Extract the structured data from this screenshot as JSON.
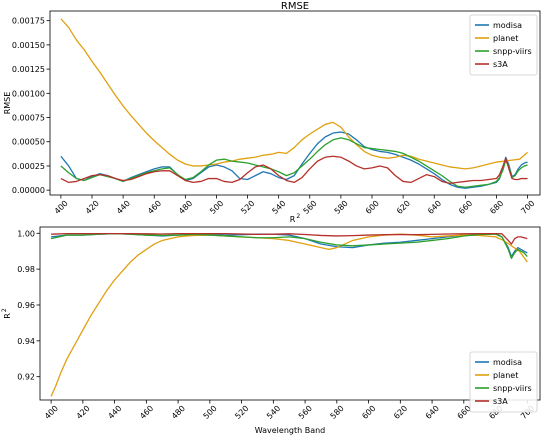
{
  "chart_data": [
    {
      "type": "line",
      "title": "RMSE",
      "xlabel": "R",
      "xlabel_superscript": "2",
      "ylabel": "RMSE",
      "xlim": [
        393,
        708
      ],
      "ylim": [
        -5e-05,
        0.00185
      ],
      "x_ticks": [
        "400",
        "420",
        "440",
        "460",
        "480",
        "500",
        "520",
        "540",
        "560",
        "580",
        "600",
        "620",
        "640",
        "660",
        "680",
        "700"
      ],
      "y_ticks": [
        "0.00000",
        "0.00025",
        "0.00050",
        "0.00075",
        "0.00100",
        "0.00125",
        "0.00150",
        "0.00175"
      ],
      "legend": "top-right",
      "grid": false,
      "series": [
        {
          "name": "modisa",
          "color": "#1f77b4",
          "x": [
            400,
            405,
            410,
            415,
            420,
            425,
            430,
            435,
            440,
            445,
            450,
            455,
            460,
            465,
            470,
            475,
            480,
            485,
            490,
            495,
            500,
            505,
            510,
            515,
            520,
            525,
            530,
            535,
            540,
            545,
            550,
            555,
            560,
            565,
            570,
            575,
            580,
            585,
            590,
            595,
            600,
            605,
            610,
            615,
            620,
            625,
            630,
            635,
            640,
            645,
            650,
            655,
            660,
            665,
            670,
            675,
            680,
            682,
            684,
            686,
            688,
            690,
            692,
            694,
            696,
            698,
            700
          ],
          "y": [
            0.00035,
            0.00025,
            0.00012,
            0.0001,
            0.00014,
            0.00017,
            0.00015,
            0.00012,
            9e-05,
            0.00013,
            0.00016,
            0.00019,
            0.00022,
            0.00024,
            0.00024,
            0.00016,
            0.0001,
            0.00012,
            0.00018,
            0.00024,
            0.00026,
            0.00024,
            0.0002,
            0.00012,
            0.00011,
            0.00015,
            0.00019,
            0.00017,
            0.00013,
            0.00011,
            0.00015,
            0.00027,
            0.00038,
            0.00048,
            0.00055,
            0.00059,
            0.0006,
            0.00058,
            0.00052,
            0.00045,
            0.00042,
            0.0004,
            0.00039,
            0.00037,
            0.00034,
            0.00031,
            0.00027,
            0.00022,
            0.00017,
            0.00011,
            6e-05,
            3e-05,
            2e-05,
            3e-05,
            4e-05,
            6e-05,
            8e-05,
            0.00012,
            0.00022,
            0.00034,
            0.00026,
            0.00014,
            0.00016,
            0.00022,
            0.00026,
            0.00028,
            0.00029
          ]
        },
        {
          "name": "planet",
          "color": "#e0a010",
          "x": [
            400,
            405,
            410,
            415,
            420,
            425,
            430,
            435,
            440,
            445,
            450,
            455,
            460,
            465,
            470,
            475,
            480,
            485,
            490,
            495,
            500,
            505,
            510,
            515,
            520,
            525,
            530,
            535,
            540,
            545,
            550,
            555,
            560,
            565,
            570,
            575,
            580,
            585,
            590,
            595,
            600,
            605,
            610,
            615,
            620,
            625,
            630,
            635,
            640,
            645,
            650,
            655,
            660,
            665,
            670,
            675,
            680,
            685,
            690,
            695,
            700
          ],
          "y": [
            0.00177,
            0.00168,
            0.00155,
            0.00145,
            0.00133,
            0.00122,
            0.0011,
            0.00098,
            0.00087,
            0.00077,
            0.00068,
            0.00059,
            0.00051,
            0.00044,
            0.00037,
            0.00031,
            0.00027,
            0.00025,
            0.00025,
            0.00026,
            0.00027,
            0.00029,
            0.0003,
            0.00032,
            0.00033,
            0.00034,
            0.00036,
            0.00037,
            0.00039,
            0.00038,
            0.00044,
            0.00052,
            0.00058,
            0.00063,
            0.00068,
            0.0007,
            0.00065,
            0.00055,
            0.00047,
            0.0004,
            0.00036,
            0.00034,
            0.00033,
            0.00034,
            0.00036,
            0.00035,
            0.00032,
            0.0003,
            0.00028,
            0.00026,
            0.00024,
            0.00023,
            0.00022,
            0.00023,
            0.00025,
            0.00027,
            0.00029,
            0.0003,
            0.00031,
            0.00032,
            0.00039
          ]
        },
        {
          "name": "snpp-viirs",
          "color": "#2ca02c",
          "x": [
            400,
            405,
            410,
            415,
            420,
            425,
            430,
            435,
            440,
            445,
            450,
            455,
            460,
            465,
            470,
            475,
            480,
            485,
            490,
            495,
            500,
            505,
            510,
            515,
            520,
            525,
            530,
            535,
            540,
            545,
            550,
            555,
            560,
            565,
            570,
            575,
            580,
            585,
            590,
            595,
            600,
            605,
            610,
            615,
            620,
            625,
            630,
            635,
            640,
            645,
            650,
            655,
            660,
            665,
            670,
            675,
            680,
            682,
            684,
            686,
            688,
            690,
            692,
            694,
            696,
            698,
            700
          ],
          "y": [
            0.00025,
            0.00018,
            0.00012,
            0.0001,
            0.00013,
            0.00016,
            0.00014,
            0.00012,
            9e-05,
            0.00012,
            0.00015,
            0.00018,
            0.0002,
            0.00022,
            0.00023,
            0.00016,
            0.00011,
            0.00013,
            0.00019,
            0.00026,
            0.00031,
            0.00032,
            0.0003,
            0.00029,
            0.00028,
            0.00026,
            0.00024,
            0.00022,
            0.00019,
            0.00015,
            0.00018,
            0.00025,
            0.00032,
            0.0004,
            0.00047,
            0.00052,
            0.00054,
            0.00052,
            0.00048,
            0.00044,
            0.00043,
            0.00042,
            0.00041,
            0.0004,
            0.00038,
            0.00034,
            0.0003,
            0.00025,
            0.0002,
            0.00015,
            9e-05,
            4e-05,
            3e-05,
            4e-05,
            5e-05,
            6e-05,
            9e-05,
            0.00013,
            0.0002,
            0.00031,
            0.00024,
            0.00013,
            0.00015,
            0.0002,
            0.00023,
            0.00025,
            0.00026
          ]
        },
        {
          "name": "s3A",
          "color": "#b5302a",
          "x": [
            400,
            405,
            410,
            415,
            420,
            425,
            430,
            435,
            440,
            445,
            450,
            455,
            460,
            465,
            470,
            475,
            480,
            485,
            490,
            495,
            500,
            505,
            510,
            515,
            520,
            525,
            530,
            535,
            540,
            545,
            550,
            555,
            560,
            565,
            570,
            575,
            580,
            585,
            590,
            595,
            600,
            605,
            610,
            615,
            620,
            625,
            630,
            635,
            640,
            645,
            650,
            655,
            660,
            665,
            670,
            675,
            680,
            682,
            684,
            686,
            688,
            690,
            692,
            694,
            696,
            698,
            700
          ],
          "y": [
            0.00012,
            8e-05,
            9e-05,
            0.00012,
            0.00015,
            0.00016,
            0.00015,
            0.00012,
            0.0001,
            0.00011,
            0.00014,
            0.00017,
            0.00019,
            0.0002,
            0.0002,
            0.00015,
            0.0001,
            8e-05,
            9e-05,
            0.00012,
            0.00012,
            9e-05,
            8e-05,
            0.00011,
            0.00018,
            0.00024,
            0.00026,
            0.00022,
            0.00015,
            0.0001,
            8e-05,
            0.00013,
            0.00022,
            0.0003,
            0.00034,
            0.00035,
            0.00034,
            0.0003,
            0.00025,
            0.00022,
            0.00023,
            0.00025,
            0.00023,
            0.00015,
            9e-05,
            8e-05,
            0.00012,
            0.00016,
            0.00014,
            9e-05,
            7e-05,
            8e-05,
            9e-05,
            0.0001,
            0.0001,
            0.00011,
            0.00012,
            0.00016,
            0.00024,
            0.00033,
            0.00022,
            0.00012,
            0.00011,
            0.00011,
            0.00012,
            0.00012,
            0.00012
          ]
        }
      ]
    },
    {
      "type": "line",
      "title": "",
      "xlabel": "Wavelength Band",
      "ylabel": "R",
      "ylabel_superscript": "2",
      "xlim": [
        393,
        708
      ],
      "ylim": [
        0.907,
        1.0035
      ],
      "x_ticks": [
        "400",
        "420",
        "440",
        "460",
        "480",
        "500",
        "520",
        "540",
        "560",
        "580",
        "600",
        "620",
        "640",
        "660",
        "680",
        "700"
      ],
      "y_ticks": [
        "0.92",
        "0.94",
        "0.96",
        "0.98",
        "1.00"
      ],
      "legend": "bottom-right",
      "grid": false,
      "series": [
        {
          "name": "modisa",
          "color": "#1f77b4",
          "x": [
            400,
            410,
            420,
            430,
            440,
            450,
            460,
            470,
            480,
            490,
            500,
            510,
            520,
            530,
            540,
            550,
            560,
            570,
            580,
            590,
            600,
            610,
            620,
            630,
            640,
            650,
            660,
            670,
            680,
            684,
            688,
            690,
            692,
            694,
            696,
            698,
            700
          ],
          "y": [
            0.998,
            0.999,
            0.999,
            0.9995,
            0.9998,
            0.9995,
            0.999,
            0.9985,
            0.999,
            0.9995,
            0.9995,
            0.999,
            0.9992,
            0.9995,
            0.9995,
            0.999,
            0.997,
            0.994,
            0.9925,
            0.992,
            0.9935,
            0.9945,
            0.995,
            0.996,
            0.997,
            0.998,
            0.999,
            0.9995,
            0.9998,
            0.998,
            0.992,
            0.987,
            0.99,
            0.992,
            0.991,
            0.99,
            0.989
          ]
        },
        {
          "name": "planet",
          "color": "#e0a010",
          "x": [
            400,
            403,
            406,
            410,
            415,
            420,
            425,
            430,
            435,
            440,
            445,
            450,
            455,
            460,
            465,
            470,
            475,
            480,
            485,
            490,
            500,
            510,
            520,
            530,
            540,
            550,
            560,
            570,
            575,
            580,
            585,
            590,
            600,
            610,
            620,
            630,
            640,
            650,
            660,
            670,
            680,
            685,
            690,
            695,
            700
          ],
          "y": [
            0.909,
            0.915,
            0.922,
            0.93,
            0.938,
            0.946,
            0.954,
            0.961,
            0.968,
            0.974,
            0.979,
            0.984,
            0.988,
            0.991,
            0.994,
            0.996,
            0.997,
            0.998,
            0.9985,
            0.9988,
            0.999,
            0.9985,
            0.998,
            0.9975,
            0.997,
            0.996,
            0.994,
            0.992,
            0.991,
            0.992,
            0.994,
            0.996,
            0.998,
            0.999,
            0.9995,
            0.999,
            0.998,
            0.9985,
            0.999,
            0.9988,
            0.998,
            0.996,
            0.993,
            0.99,
            0.984
          ]
        },
        {
          "name": "snpp-viirs",
          "color": "#2ca02c",
          "x": [
            400,
            410,
            420,
            430,
            440,
            450,
            460,
            470,
            480,
            490,
            500,
            510,
            520,
            530,
            540,
            550,
            560,
            570,
            580,
            590,
            600,
            610,
            620,
            630,
            640,
            650,
            660,
            670,
            680,
            684,
            688,
            690,
            692,
            694,
            696,
            698,
            700
          ],
          "y": [
            0.997,
            0.999,
            0.999,
            0.9995,
            0.9998,
            0.9995,
            0.999,
            0.9988,
            0.999,
            0.9993,
            0.999,
            0.9985,
            0.998,
            0.9975,
            0.9975,
            0.998,
            0.997,
            0.995,
            0.9935,
            0.993,
            0.9935,
            0.994,
            0.9945,
            0.995,
            0.996,
            0.997,
            0.9985,
            0.9993,
            0.9995,
            0.998,
            0.991,
            0.986,
            0.989,
            0.991,
            0.99,
            0.989,
            0.987
          ]
        },
        {
          "name": "s3A",
          "color": "#b5302a",
          "x": [
            400,
            410,
            420,
            430,
            440,
            450,
            460,
            470,
            480,
            490,
            500,
            510,
            520,
            530,
            540,
            550,
            560,
            570,
            580,
            590,
            600,
            610,
            620,
            630,
            640,
            650,
            660,
            670,
            680,
            684,
            688,
            690,
            692,
            694,
            696,
            698,
            700
          ],
          "y": [
            0.9995,
            0.9998,
            0.9998,
            0.9998,
            0.9998,
            0.9998,
            0.9997,
            0.9996,
            0.9998,
            0.9998,
            0.9998,
            0.9998,
            0.9996,
            0.9994,
            0.9995,
            0.9997,
            0.9993,
            0.9988,
            0.9985,
            0.9987,
            0.999,
            0.9992,
            0.9993,
            0.9992,
            0.9994,
            0.9996,
            0.9997,
            0.9998,
            0.9998,
            0.9997,
            0.996,
            0.994,
            0.997,
            0.998,
            0.998,
            0.9975,
            0.997
          ]
        }
      ]
    }
  ]
}
